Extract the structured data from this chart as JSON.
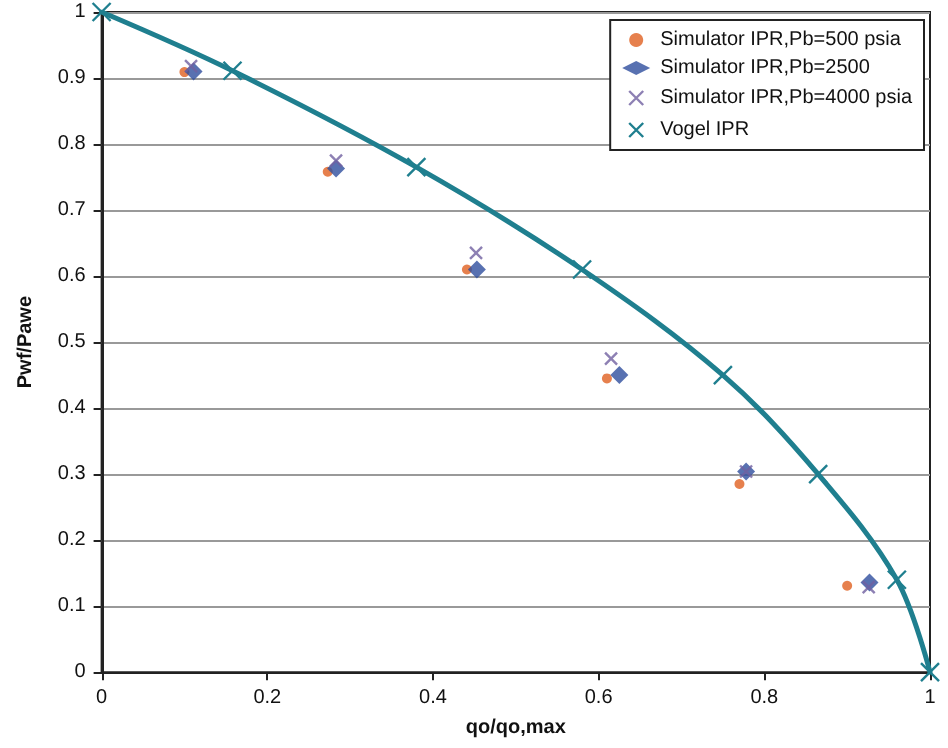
{
  "chart_data": {
    "type": "scatter",
    "xlabel": "qo/qo,max",
    "ylabel": "Pwf/Pawe",
    "xlim": [
      0,
      1
    ],
    "ylim": [
      0,
      1
    ],
    "xticks": [
      0,
      0.2,
      0.4,
      0.6,
      0.8,
      1
    ],
    "yticks": [
      0,
      0.1,
      0.2,
      0.3,
      0.4,
      0.5,
      0.6,
      0.7,
      0.8,
      0.9,
      1
    ],
    "grid": "y",
    "legend": "top right",
    "series": [
      {
        "name": "Simulator IPR,Pb=500 psia",
        "marker": "circle",
        "color": "#e06020",
        "x": [
          0.1,
          0.273,
          0.441,
          0.61,
          0.77,
          0.9
        ],
        "values": [
          0.909,
          0.758,
          0.61,
          0.445,
          0.285,
          0.131
        ]
      },
      {
        "name": "Simulator IPR,Pb=2500",
        "marker": "diamond",
        "color": "#2e4e9e",
        "x": [
          0.111,
          0.283,
          0.453,
          0.625,
          0.778,
          0.927
        ],
        "values": [
          0.91,
          0.763,
          0.61,
          0.45,
          0.304,
          0.136
        ]
      },
      {
        "name": "Simulator IPR,Pb=4000 psia",
        "marker": "cross",
        "color": "#7060a0",
        "x": [
          0.108,
          0.283,
          0.452,
          0.615,
          0.778,
          0.926
        ],
        "values": [
          0.918,
          0.775,
          0.635,
          0.475,
          0.304,
          0.129
        ]
      },
      {
        "name": "Vogel IPR",
        "type": "line",
        "marker": "cross",
        "line_style": "solid",
        "color": "#1f7f8f",
        "x": [
          0,
          0.158,
          0.38,
          0.58,
          0.75,
          0.865,
          0.96,
          1
        ],
        "values": [
          1,
          0.911,
          0.765,
          0.61,
          0.45,
          0.3,
          0.14,
          0
        ]
      }
    ]
  }
}
